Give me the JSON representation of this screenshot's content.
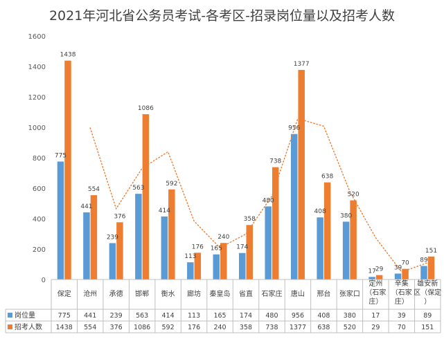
{
  "chart_data": {
    "type": "bar",
    "title": "2021年河北省公务员考试-各考区-招录岗位量以及招考人数",
    "categories": [
      "保定",
      "沧州",
      "承德",
      "邯郸",
      "衡水",
      "廊坊",
      "秦皇岛",
      "省直",
      "石家庄",
      "唐山",
      "邢台",
      "张家口",
      "定州（石家庄）",
      "辛集（石家庄）",
      "雄安新区（保定）"
    ],
    "category_lines": [
      [
        "保定"
      ],
      [
        "沧州"
      ],
      [
        "承德"
      ],
      [
        "邯郸"
      ],
      [
        "衡水"
      ],
      [
        "廊坊"
      ],
      [
        "秦皇岛"
      ],
      [
        "省直"
      ],
      [
        "石家庄"
      ],
      [
        "唐山"
      ],
      [
        "邢台"
      ],
      [
        "张家口"
      ],
      [
        "定州",
        "（石家",
        "庄）"
      ],
      [
        "辛集",
        "（石家",
        "庄）"
      ],
      [
        "雄安新",
        "区（保定",
        "）"
      ]
    ],
    "series": [
      {
        "name": "岗位量",
        "color": "#5b9bd5",
        "values": [
          775,
          441,
          239,
          563,
          414,
          113,
          165,
          174,
          480,
          956,
          408,
          380,
          17,
          39,
          89
        ]
      },
      {
        "name": "招考人数",
        "color": "#ed7d31",
        "values": [
          1438,
          554,
          376,
          1086,
          592,
          176,
          240,
          358,
          738,
          1377,
          638,
          520,
          29,
          70,
          151
        ]
      }
    ],
    "trendline": {
      "series": "招考人数",
      "type": "moving-average",
      "style": "dotted",
      "color": "#ed7d31"
    },
    "ylim": [
      0,
      1600
    ],
    "yticks": [
      0,
      200,
      400,
      600,
      800,
      1000,
      1200,
      1400,
      1600
    ],
    "grid": false,
    "legend": "data-table",
    "data_table": true
  }
}
